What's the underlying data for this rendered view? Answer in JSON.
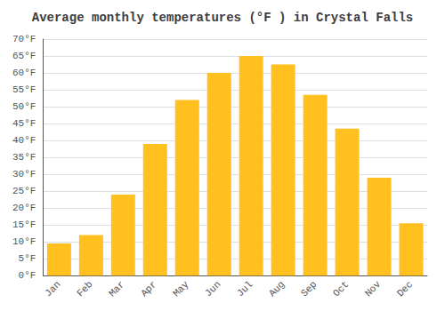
{
  "chart_data": {
    "type": "bar",
    "title": "Average monthly temperatures (°F ) in Crystal Falls",
    "categories": [
      "Jan",
      "Feb",
      "Mar",
      "Apr",
      "May",
      "Jun",
      "Jul",
      "Aug",
      "Sep",
      "Oct",
      "Nov",
      "Dec"
    ],
    "values": [
      9.5,
      12,
      24,
      39,
      52,
      60,
      65,
      62.5,
      53.5,
      43.5,
      29,
      15.5
    ],
    "color": "#FFC020",
    "ylim": [
      0,
      70
    ],
    "yticks": [
      {
        "value": 0,
        "label": "0°F"
      },
      {
        "value": 5,
        "label": "5°F"
      },
      {
        "value": 10,
        "label": "10°F"
      },
      {
        "value": 15,
        "label": "15°F"
      },
      {
        "value": 20,
        "label": "20°F"
      },
      {
        "value": 25,
        "label": "25°F"
      },
      {
        "value": 30,
        "label": "30°F"
      },
      {
        "value": 35,
        "label": "35°F"
      },
      {
        "value": 40,
        "label": "40°F"
      },
      {
        "value": 45,
        "label": "45°F"
      },
      {
        "value": 50,
        "label": "50°F"
      },
      {
        "value": 55,
        "label": "55°F"
      },
      {
        "value": 60,
        "label": "60°F"
      },
      {
        "value": 65,
        "label": "65°F"
      },
      {
        "value": 70,
        "label": "70°F"
      }
    ],
    "grid": true
  }
}
